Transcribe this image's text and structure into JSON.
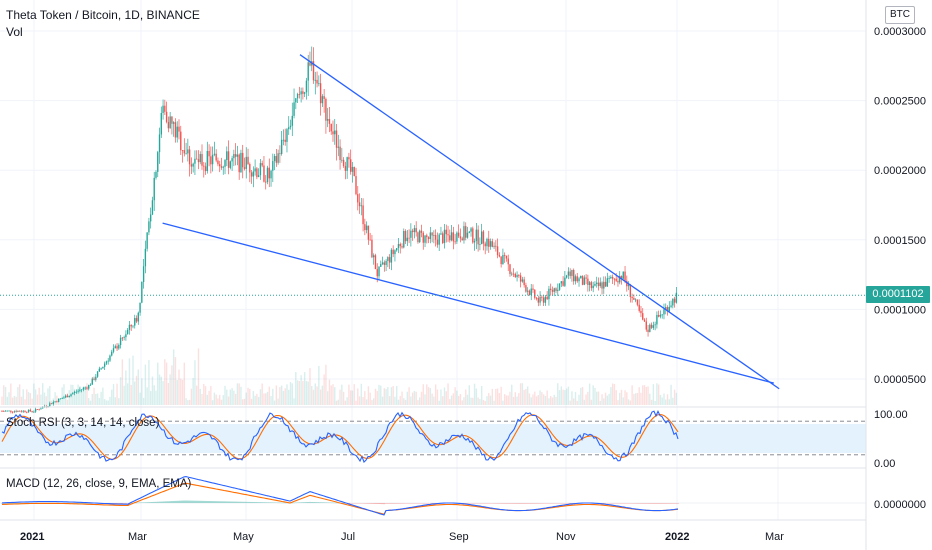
{
  "header": {
    "title": "Theta Token / Bitcoin, 1D, BINANCE",
    "volume_label": "Vol",
    "currency": "BTC"
  },
  "price_axis": {
    "ticks": [
      "0.0003000",
      "0.0002500",
      "0.0002000",
      "0.0001500",
      "0.0001000",
      "0.0000500"
    ],
    "tick_values": [
      0.0003,
      0.00025,
      0.0002,
      0.00015,
      0.0001,
      5e-05
    ],
    "current_price": "0.0001102",
    "current_value": 0.0001102
  },
  "time_axis": {
    "labels": [
      "2021",
      "Mar",
      "May",
      "Jul",
      "Sep",
      "Nov",
      "2022",
      "Mar"
    ]
  },
  "indicators": {
    "stoch_rsi": {
      "label": "Stoch RSI (3, 3, 14, 14, close)",
      "ticks": [
        "100.00",
        "0.00"
      ],
      "bands": [
        80,
        20
      ]
    },
    "macd": {
      "label": "MACD (12, 26, close, 9, EMA, EMA)",
      "ticks": [
        "0.0000000"
      ]
    }
  },
  "colors": {
    "up": "#26a69a",
    "down": "#ef5350",
    "trendline": "#2962ff",
    "stoch_k": "#2962ff",
    "stoch_d": "#ff6d00",
    "band_fill": "#e3f2fd"
  },
  "chart_data": {
    "type": "candlestick",
    "x": [
      "2021-01",
      "2021-02",
      "2021-03-01",
      "2021-03-15",
      "2021-04-01",
      "2021-04-15",
      "2021-05-01",
      "2021-05-15",
      "2021-06-01",
      "2021-06-08",
      "2021-06-20",
      "2021-07-01",
      "2021-07-15",
      "2021-08-01",
      "2021-08-15",
      "2021-09-01",
      "2021-09-15",
      "2021-10-01",
      "2021-10-15",
      "2021-11-01",
      "2021-11-15",
      "2021-12-01",
      "2021-12-15",
      "2022-01-01"
    ],
    "close": [
      2.7e-05,
      4.5e-05,
      9.5e-05,
      0.000245,
      0.000205,
      0.000208,
      0.000205,
      0.000195,
      0.000255,
      0.000275,
      0.000225,
      0.000195,
      0.000125,
      0.000155,
      0.00015,
      0.000155,
      0.00015,
      0.000125,
      0.000105,
      0.000125,
      0.000115,
      0.000125,
      8.5e-05,
      0.00011
    ],
    "trendlines": [
      {
        "from": [
          "2021-03-15",
          0.000162
        ],
        "to": [
          "2022-02-25",
          4.7e-05
        ]
      },
      {
        "from": [
          "2021-06-01",
          0.000283
        ],
        "to": [
          "2022-02-28",
          4.3e-05
        ]
      }
    ]
  }
}
